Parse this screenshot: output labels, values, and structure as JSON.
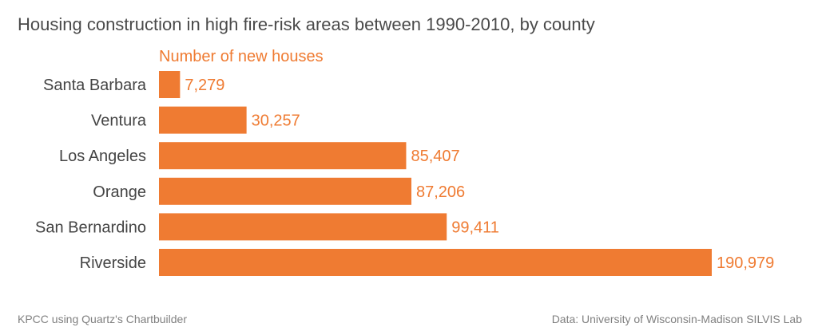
{
  "chart_data": {
    "type": "bar",
    "orientation": "horizontal",
    "title": "Housing construction in high fire-risk areas between 1990-2010, by county",
    "series_label": "Number of new houses",
    "categories": [
      "Santa Barbara",
      "Ventura",
      "Los Angeles",
      "Orange",
      "San Bernardino",
      "Riverside"
    ],
    "values": [
      7279,
      30257,
      85407,
      87206,
      99411,
      190979
    ],
    "value_labels": [
      "7,279",
      "30,257",
      "85,407",
      "87,206",
      "99,411",
      "190,979"
    ],
    "xlim": [
      0,
      190979
    ],
    "grid": false,
    "legend": "none",
    "bar_color": "#ef7b32"
  },
  "footer": {
    "credit": "KPCC using Quartz's Chartbuilder",
    "source": "Data: University of Wisconsin-Madison SILVIS Lab"
  }
}
